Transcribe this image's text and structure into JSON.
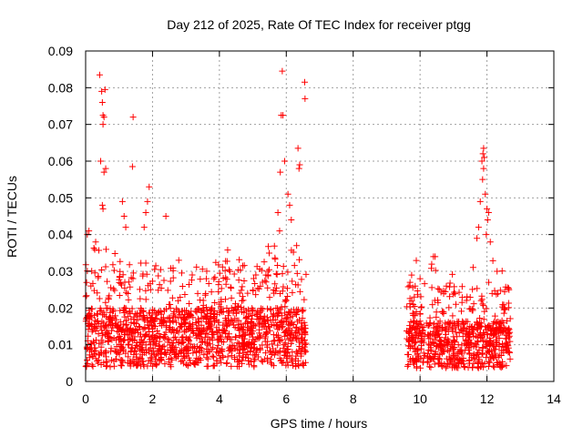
{
  "chart_data": {
    "type": "scatter",
    "title": "Day 212 of 2025, Rate Of TEC Index for receiver ptgg",
    "xlabel": "GPS time / hours",
    "ylabel": "ROTI / TECUs",
    "xlim": [
      0,
      14
    ],
    "ylim": [
      0,
      0.09
    ],
    "xticks": [
      "0",
      "2",
      "4",
      "6",
      "8",
      "10",
      "12",
      "14"
    ],
    "yticks": [
      "0",
      "0.01",
      "0.02",
      "0.03",
      "0.04",
      "0.05",
      "0.06",
      "0.07",
      "0.08",
      "0.09"
    ],
    "grid": true,
    "marker": "+",
    "color": "#ff0000",
    "series": [
      {
        "name": "ROTI",
        "segments": [
          {
            "x_start": 0.0,
            "x_end": 6.6,
            "base": 0.012,
            "spread": 0.01
          },
          {
            "x_start": 9.6,
            "x_end": 12.7,
            "base": 0.01,
            "spread": 0.008
          }
        ],
        "outliers": [
          [
            0.42,
            0.0835
          ],
          [
            0.48,
            0.079
          ],
          [
            0.5,
            0.076
          ],
          [
            0.52,
            0.0725
          ],
          [
            0.55,
            0.072
          ],
          [
            0.58,
            0.0795
          ],
          [
            0.52,
            0.07
          ],
          [
            0.45,
            0.06
          ],
          [
            0.55,
            0.057
          ],
          [
            0.6,
            0.058
          ],
          [
            0.5,
            0.048
          ],
          [
            0.52,
            0.047
          ],
          [
            1.42,
            0.072
          ],
          [
            1.4,
            0.0585
          ],
          [
            1.1,
            0.049
          ],
          [
            1.15,
            0.045
          ],
          [
            1.2,
            0.042
          ],
          [
            1.9,
            0.053
          ],
          [
            1.85,
            0.049
          ],
          [
            1.8,
            0.046
          ],
          [
            1.75,
            0.042
          ],
          [
            2.4,
            0.045
          ],
          [
            0.05,
            0.04
          ],
          [
            0.1,
            0.041
          ],
          [
            0.3,
            0.038
          ],
          [
            5.88,
            0.0845
          ],
          [
            5.85,
            0.0725
          ],
          [
            5.9,
            0.0725
          ],
          [
            5.82,
            0.057
          ],
          [
            5.95,
            0.06
          ],
          [
            6.35,
            0.0635
          ],
          [
            6.4,
            0.059
          ],
          [
            6.38,
            0.058
          ],
          [
            6.55,
            0.0815
          ],
          [
            6.56,
            0.077
          ],
          [
            6.05,
            0.051
          ],
          [
            6.1,
            0.048
          ],
          [
            6.15,
            0.044
          ],
          [
            5.75,
            0.046
          ],
          [
            5.8,
            0.041
          ],
          [
            11.9,
            0.0635
          ],
          [
            11.88,
            0.062
          ],
          [
            11.92,
            0.061
          ],
          [
            11.85,
            0.06
          ],
          [
            11.9,
            0.058
          ],
          [
            11.87,
            0.055
          ],
          [
            11.95,
            0.051
          ],
          [
            11.8,
            0.049
          ],
          [
            12.0,
            0.047
          ],
          [
            12.05,
            0.046
          ],
          [
            12.02,
            0.044
          ],
          [
            11.75,
            0.042
          ],
          [
            11.7,
            0.039
          ],
          [
            11.98,
            0.04
          ],
          [
            12.1,
            0.038
          ],
          [
            10.4,
            0.034
          ],
          [
            10.45,
            0.034
          ],
          [
            9.7,
            0.027
          ],
          [
            10.0,
            0.028
          ]
        ]
      }
    ]
  }
}
